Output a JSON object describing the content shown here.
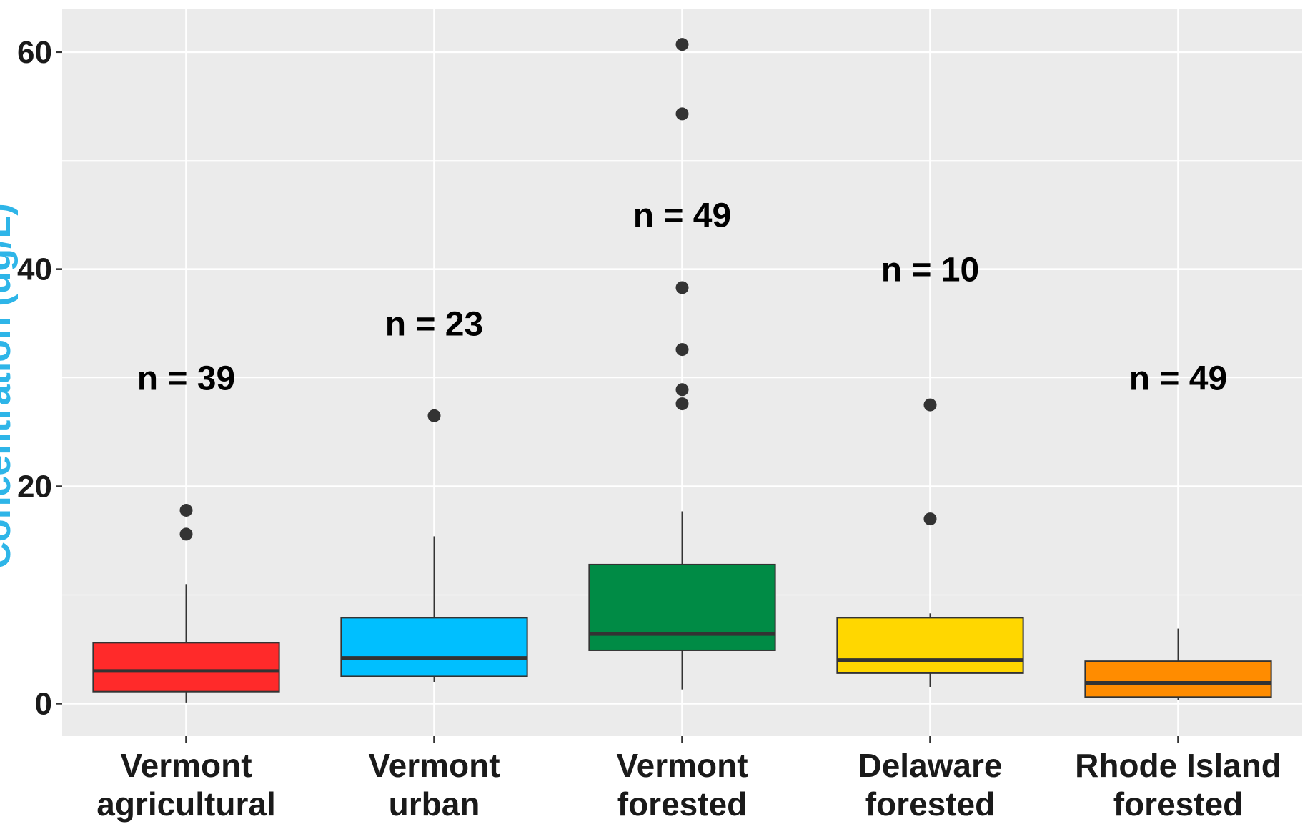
{
  "chart_data": {
    "type": "box",
    "title": "",
    "xlabel": "",
    "ylabel": "Concentration (ug/L)",
    "ylim": [
      -3,
      64
    ],
    "y_ticks": [
      0,
      20,
      40,
      60
    ],
    "grid": true,
    "background": "#EBEBEB",
    "categories": [
      {
        "label_lines": [
          "Vermont",
          "agricultural"
        ],
        "color": "#FF2A2A",
        "n_label": "n =  39",
        "n": 39,
        "whisker_low": 0.1,
        "q1": 1.1,
        "median": 3.0,
        "q3": 5.6,
        "whisker_high": 11.0,
        "outliers": [
          15.6,
          17.8
        ]
      },
      {
        "label_lines": [
          "Vermont",
          "urban"
        ],
        "color": "#00BFFF",
        "n_label": "n =  23",
        "n": 23,
        "whisker_low": 2.0,
        "q1": 2.5,
        "median": 4.2,
        "q3": 7.9,
        "whisker_high": 15.4,
        "outliers": [
          26.5
        ]
      },
      {
        "label_lines": [
          "Vermont",
          "forested"
        ],
        "color": "#008B45",
        "n_label": "n =  49",
        "n": 49,
        "whisker_low": 1.3,
        "q1": 4.9,
        "median": 6.4,
        "q3": 12.8,
        "whisker_high": 17.7,
        "outliers": [
          27.6,
          28.9,
          32.6,
          38.3,
          54.3,
          60.7
        ]
      },
      {
        "label_lines": [
          "Delaware",
          "forested"
        ],
        "color": "#FFD700",
        "n_label": "n =  10",
        "n": 10,
        "whisker_low": 1.5,
        "q1": 2.8,
        "median": 4.0,
        "q3": 7.9,
        "whisker_high": 8.3,
        "outliers": [
          17.0,
          27.5
        ]
      },
      {
        "label_lines": [
          "Rhode Island",
          "forested"
        ],
        "color": "#FF8C00",
        "n_label": "n =  49",
        "n": 49,
        "whisker_low": 0.3,
        "q1": 0.6,
        "median": 1.9,
        "q3": 3.9,
        "whisker_high": 6.9,
        "outliers": []
      }
    ],
    "n_label_y": [
      30,
      35,
      45,
      40,
      30
    ]
  }
}
